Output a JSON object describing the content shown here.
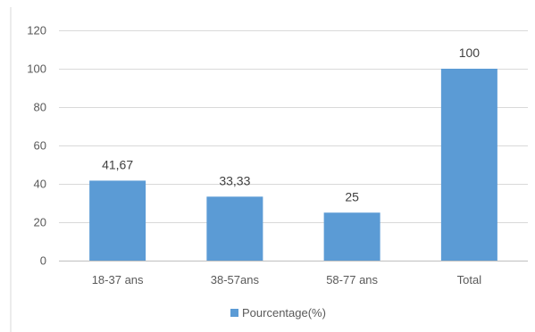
{
  "chart_data": {
    "type": "bar",
    "categories": [
      "18-37 ans",
      "38-57ans",
      "58-77 ans",
      "Total"
    ],
    "series": [
      {
        "name": "Pourcentage(%)",
        "values": [
          41.67,
          33.33,
          25,
          100
        ],
        "color": "#5b9bd5"
      }
    ],
    "data_labels": [
      "41,67",
      "33,33",
      "25",
      "100"
    ],
    "ylim": [
      0,
      120
    ],
    "yticks": [
      0,
      20,
      40,
      60,
      80,
      100,
      120
    ],
    "grid": true,
    "legend_position": "bottom",
    "colors": {
      "grid": "#d9d9d9",
      "axis": "#bfbfbf",
      "frame": "#d9d9d9"
    }
  }
}
